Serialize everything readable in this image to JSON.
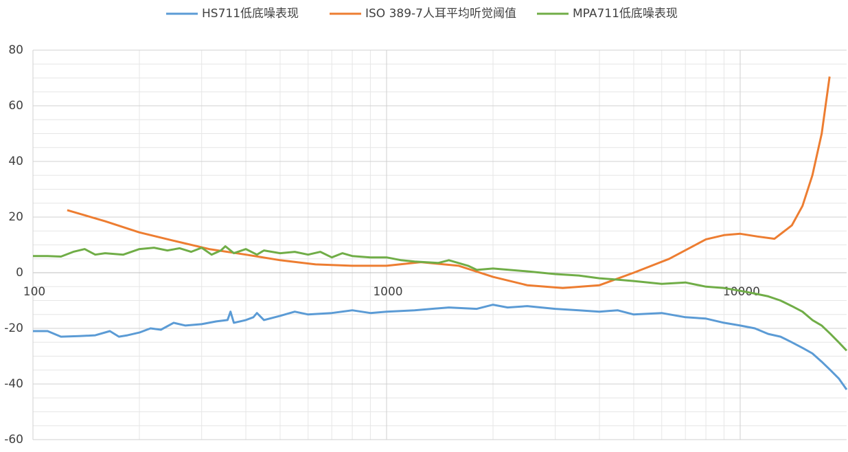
{
  "chart_data": {
    "type": "line",
    "xscale": "log",
    "grid": true,
    "minor_grid": true,
    "legend": "top",
    "xlim": [
      100,
      20000
    ],
    "xticks": [
      100,
      1000,
      10000
    ],
    "ylim": [
      -60,
      80
    ],
    "yticks": [
      -60,
      -40,
      -20,
      0,
      20,
      40,
      60,
      80
    ],
    "series": [
      {
        "name": "HS711低底噪表现",
        "color": "#5b9bd5",
        "x": [
          100,
          110,
          120,
          135,
          150,
          165,
          175,
          185,
          200,
          215,
          230,
          250,
          270,
          300,
          330,
          355,
          362,
          370,
          400,
          420,
          430,
          450,
          500,
          550,
          600,
          700,
          800,
          900,
          1000,
          1200,
          1500,
          1800,
          2000,
          2200,
          2500,
          3000,
          3500,
          4000,
          4500,
          5000,
          6000,
          7000,
          8000,
          9000,
          10000,
          11000,
          12000,
          13000,
          14000,
          15000,
          16000,
          17000,
          18000,
          19000,
          20000
        ],
        "values": [
          -21,
          -21,
          -23,
          -22.8,
          -22.5,
          -21,
          -23,
          -22.5,
          -21.5,
          -20,
          -20.5,
          -18,
          -19,
          -18.5,
          -17.5,
          -17,
          -14,
          -18,
          -17,
          -16,
          -14.5,
          -17,
          -15.5,
          -14,
          -15,
          -14.5,
          -13.5,
          -14.5,
          -14,
          -13.5,
          -12.5,
          -13,
          -11.5,
          -12.5,
          -12,
          -13,
          -13.5,
          -14,
          -13.5,
          -15,
          -14.5,
          -16,
          -16.5,
          -18,
          -19,
          -20,
          -22,
          -23,
          -25,
          -27,
          -29,
          -32,
          -35,
          -38,
          -42
        ]
      },
      {
        "name": "ISO 389-7人耳平均听觉阈值",
        "color": "#ed7d31",
        "x": [
          125,
          160,
          200,
          250,
          315,
          400,
          500,
          630,
          800,
          1000,
          1250,
          1600,
          2000,
          2500,
          3150,
          4000,
          5000,
          6300,
          8000,
          9000,
          10000,
          11200,
          12500,
          14000,
          15000,
          16000,
          17000,
          17900
        ],
        "values": [
          22.5,
          18.5,
          14.5,
          11.5,
          8.5,
          6.5,
          4.5,
          3,
          2.5,
          2.5,
          3.8,
          2.5,
          -1.5,
          -4.5,
          -5.5,
          -4.5,
          0,
          5,
          12,
          13.5,
          14,
          13,
          12.2,
          17,
          24,
          35,
          50,
          70.5
        ]
      },
      {
        "name": "MPA711低底噪表现",
        "color": "#70ad47",
        "x": [
          100,
          110,
          120,
          130,
          140,
          150,
          160,
          180,
          200,
          220,
          240,
          260,
          280,
          300,
          320,
          340,
          350,
          370,
          400,
          430,
          450,
          500,
          550,
          600,
          650,
          700,
          750,
          800,
          900,
          1000,
          1100,
          1200,
          1400,
          1500,
          1700,
          1800,
          2000,
          2500,
          3000,
          3500,
          4000,
          4500,
          5000,
          6000,
          7000,
          8000,
          9000,
          10000,
          11000,
          12000,
          13000,
          14000,
          15000,
          16000,
          17000,
          18000,
          19000,
          20000
        ],
        "values": [
          6,
          6,
          5.8,
          7.5,
          8.5,
          6.5,
          7,
          6.5,
          8.5,
          9,
          8,
          8.8,
          7.5,
          9,
          6.5,
          8,
          9.5,
          7,
          8.5,
          6.5,
          8,
          7,
          7.5,
          6.5,
          7.5,
          5.5,
          7,
          6,
          5.5,
          5.5,
          4.5,
          4,
          3.5,
          4.5,
          2.5,
          1,
          1.5,
          0.5,
          -0.5,
          -1,
          -2,
          -2.5,
          -3,
          -4,
          -3.5,
          -5,
          -5.5,
          -6.5,
          -7.5,
          -8.5,
          -10,
          -12,
          -14,
          -17,
          -19,
          -22,
          -25,
          -28
        ]
      }
    ]
  }
}
